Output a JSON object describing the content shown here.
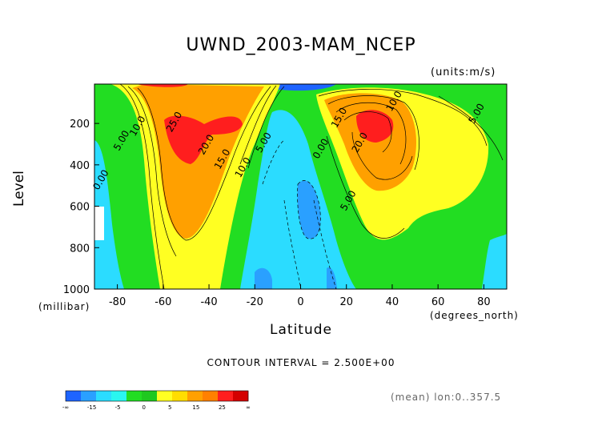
{
  "chart_data": {
    "type": "contour",
    "title": "UWND_2003-MAM_NCEP",
    "units": "(units:m/s)",
    "ylabel": "Level",
    "ylabel_units": "(millibar)",
    "xlabel": "Latitude",
    "xlabel_units": "(degrees_north)",
    "xlim": [
      -90,
      90
    ],
    "ylim": [
      1000,
      10
    ],
    "x_ticks": [
      {
        "value": -80,
        "label": "-80"
      },
      {
        "value": -60,
        "label": "-60"
      },
      {
        "value": -40,
        "label": "-40"
      },
      {
        "value": -20,
        "label": "-20"
      },
      {
        "value": 0,
        "label": "0"
      },
      {
        "value": 20,
        "label": "20"
      },
      {
        "value": 40,
        "label": "40"
      },
      {
        "value": 60,
        "label": "60"
      },
      {
        "value": 80,
        "label": "80"
      }
    ],
    "y_ticks": [
      {
        "value": 200,
        "label": "200"
      },
      {
        "value": 400,
        "label": "400"
      },
      {
        "value": 600,
        "label": "600"
      },
      {
        "value": 800,
        "label": "800"
      },
      {
        "value": 1000,
        "label": "1000"
      }
    ],
    "contour_labels": [
      {
        "text": "25.0",
        "x": -54,
        "y": 200
      },
      {
        "text": "20.0",
        "x": -40,
        "y": 310
      },
      {
        "text": "15.0",
        "x": -33,
        "y": 380
      },
      {
        "text": "10.0",
        "x": -24,
        "y": 420
      },
      {
        "text": "5.00",
        "x": -15,
        "y": 300
      },
      {
        "text": "10.0",
        "x": -70,
        "y": 220
      },
      {
        "text": "5.00",
        "x": -77,
        "y": 290
      },
      {
        "text": "0.00",
        "x": -86,
        "y": 480
      },
      {
        "text": "0.00",
        "x": 10,
        "y": 330
      },
      {
        "text": "5.00",
        "x": 22,
        "y": 580
      },
      {
        "text": "10.0",
        "x": 42,
        "y": 100
      },
      {
        "text": "15.0",
        "x": 18,
        "y": 180
      },
      {
        "text": "20.0",
        "x": 27,
        "y": 300
      },
      {
        "text": "5.00",
        "x": 78,
        "y": 160
      }
    ],
    "contour_interval_label": "CONTOUR INTERVAL = 2.500E+00",
    "colorbar": {
      "colors": [
        "#1e64ff",
        "#2aa0ff",
        "#2bdcff",
        "#2af6f0",
        "#22dd22",
        "#1fc81f",
        "#ffff22",
        "#ffdd00",
        "#ffa000",
        "#ff8000",
        "#ff1e1e",
        "#d40000"
      ],
      "labels": [
        "-∞",
        "-15",
        "-5",
        "0",
        "5",
        "15",
        "25",
        "∞"
      ]
    },
    "note": "(mean) lon:0..357.5"
  }
}
